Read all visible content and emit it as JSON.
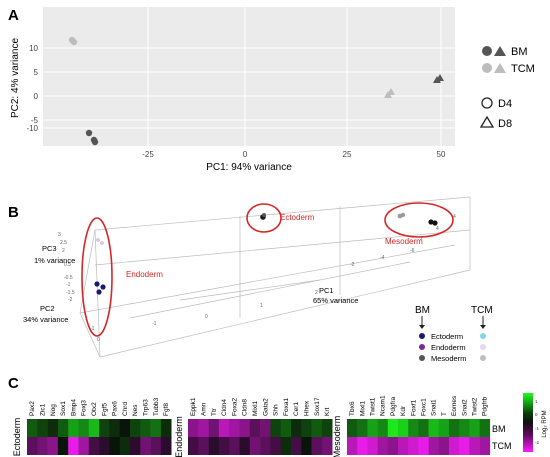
{
  "panels": {
    "a": "A",
    "b": "B",
    "c": "C"
  },
  "panel_a": {
    "y_ticks": [
      "10",
      "5",
      "0",
      "-5",
      "-10"
    ],
    "x_ticks": [
      "-25",
      "0",
      "25"
    ],
    "x_tick_right": "50",
    "xlabel": "PC1: 94% variance",
    "ylabel": "PC2: 4% variance",
    "legend": {
      "bm": "BM",
      "tcm": "TCM",
      "d4": "D4",
      "d8": "D8"
    },
    "colors": {
      "bm": "#555555",
      "tcm": "#bdbdbd"
    }
  },
  "panel_b": {
    "pc3_label": "PC3",
    "pc3_variance": "1% variance",
    "pc2_label": "PC2",
    "pc2_variance": "34% variance",
    "pc1_label": "PC1",
    "pc1_variance": "65% variance",
    "endoderm": "Endoderm",
    "ectoderm": "Ectoderm",
    "mesoderm": "Mesoderm",
    "legend_bm": "BM",
    "legend_tcm": "TCM",
    "legend_items": [
      "Ectoderm",
      "Endoderm",
      "Mesoderm"
    ],
    "bm_colors": [
      "#1a1a6e",
      "#7b2a8f",
      "#555555"
    ],
    "tcm_colors": [
      "#7fd6e8",
      "#d9c8e8",
      "#bdbdbd"
    ],
    "axis_ticks_pc3": [
      "3",
      "2.5",
      "2",
      "1.5",
      "1",
      "0.5",
      "0",
      "-0.5",
      "-1",
      "-1.5",
      "-2"
    ],
    "ellipse_color": "#d62728"
  },
  "panel_c": {
    "ectoderm_label": "Ectoderm",
    "endoderm_label": "Endoderm",
    "mesoderm_label": "Mesoderm",
    "ectoderm_genes": [
      "Pax2",
      "Zic1",
      "Nog",
      "Sox1",
      "Bmp4",
      "Foxj3",
      "Otx2",
      "Fgf5",
      "Pax6",
      "Chrd",
      "Nes",
      "Trp63",
      "Tubb3",
      "Fgf8"
    ],
    "endoderm_genes": [
      "Eppk1",
      "Amn",
      "Ttr",
      "Cldn4",
      "Foxa2",
      "Cldn8",
      "Mixl1",
      "Gata2",
      "Shh",
      "Foxa1",
      "Cer1",
      "Hhex",
      "Sox17",
      "Krt"
    ],
    "mesoderm_genes": [
      "Tbx6",
      "Mixl1",
      "Twist1",
      "Ncam1",
      "Pdgfra",
      "Kdr",
      "Foxf1",
      "Foxc1",
      "Snai1",
      "T",
      "Eomes",
      "Snai2",
      "Twist2",
      "Pdgfrb"
    ],
    "rows": [
      "BM",
      "TCM"
    ],
    "scale_label": "Log₂ RPM",
    "scale_ticks": [
      "1",
      "0",
      "-1",
      "-2"
    ]
  },
  "heatmap": {
    "ectoderm": {
      "bm": [
        0.3,
        0.2,
        0.1,
        0.3,
        0.6,
        0.5,
        0.7,
        0.2,
        0.1,
        0.0,
        0.2,
        0.3,
        0.4,
        0.1
      ],
      "tcm": [
        -0.3,
        -0.4,
        -0.5,
        0.0,
        -0.9,
        -0.6,
        -0.2,
        -0.1,
        0.0,
        0.1,
        -0.1,
        -0.4,
        -0.3,
        -0.1
      ]
    },
    "endoderm": {
      "bm": [
        -0.5,
        -0.6,
        -0.4,
        -0.7,
        -0.6,
        -0.5,
        -0.3,
        -0.4,
        0.2,
        0.3,
        0.1,
        0.2,
        0.3,
        0.2
      ],
      "tcm": [
        -0.2,
        -0.3,
        -0.1,
        -0.2,
        -0.3,
        -0.1,
        -0.4,
        -0.3,
        -0.2,
        0.1,
        -0.2,
        0.0,
        -0.3,
        -0.4
      ]
    },
    "mesoderm": {
      "bm": [
        0.3,
        0.4,
        0.6,
        0.5,
        0.9,
        0.8,
        0.5,
        0.4,
        0.7,
        0.6,
        0.4,
        0.5,
        0.6,
        0.4
      ],
      "tcm": [
        -0.7,
        -0.9,
        -0.8,
        -0.6,
        -0.5,
        -0.7,
        -0.8,
        -0.9,
        -0.6,
        -0.5,
        -0.8,
        -0.9,
        -0.7,
        -0.6
      ]
    }
  }
}
